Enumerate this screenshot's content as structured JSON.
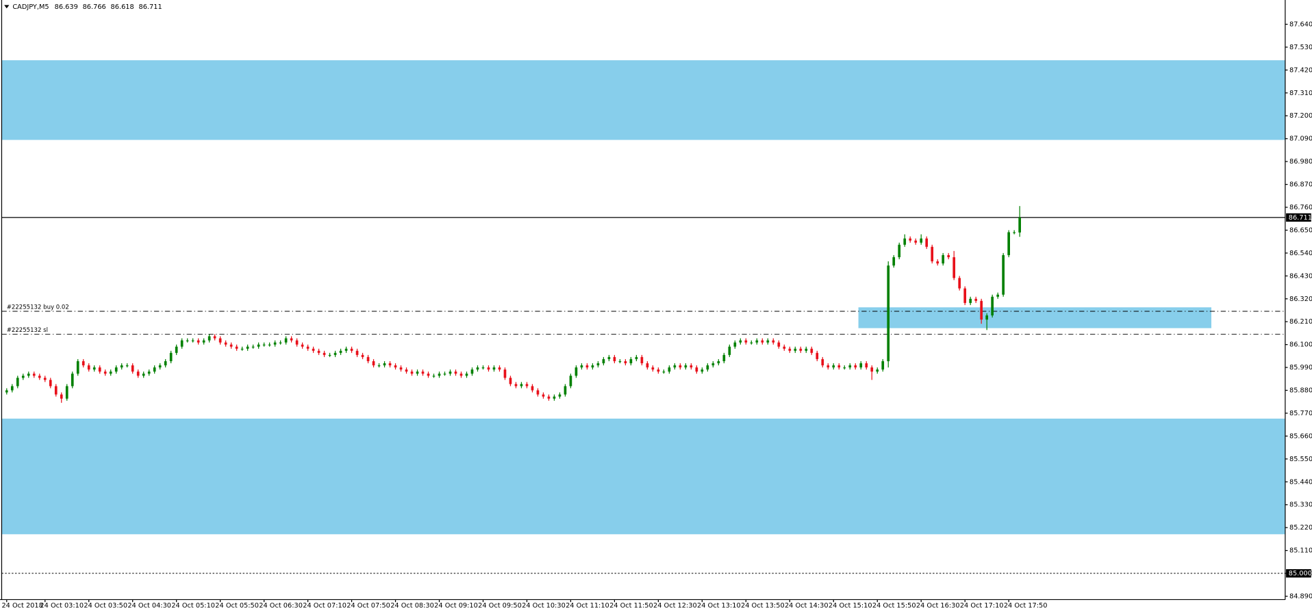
{
  "chart_data": {
    "type": "candlestick",
    "title": "CADJPY,M5",
    "current_price": 86.711,
    "alert_level": {
      "value": 85.0,
      "label": "85.000"
    },
    "up_color": "#008000",
    "down_color": "#e8101a",
    "zone_color": "#87ceeb",
    "ylim": [
      84.8737,
      87.7567
    ],
    "yticks": [
      {
        "value": 87.64,
        "label": "87.640"
      },
      {
        "value": 87.53,
        "label": "87.530"
      },
      {
        "value": 87.42,
        "label": "87.420"
      },
      {
        "value": 87.31,
        "label": "87.310"
      },
      {
        "value": 87.2,
        "label": "87.200"
      },
      {
        "value": 87.09,
        "label": "87.090"
      },
      {
        "value": 86.98,
        "label": "86.980"
      },
      {
        "value": 86.87,
        "label": "86.870"
      },
      {
        "value": 86.76,
        "label": "86.760"
      },
      {
        "value": 86.65,
        "label": "86.650"
      },
      {
        "value": 86.54,
        "label": "86.540"
      },
      {
        "value": 86.43,
        "label": "86.430"
      },
      {
        "value": 86.32,
        "label": "86.320"
      },
      {
        "value": 86.21,
        "label": "86.210"
      },
      {
        "value": 86.1,
        "label": "86.100"
      },
      {
        "value": 85.99,
        "label": "85.990"
      },
      {
        "value": 85.88,
        "label": "85.880"
      },
      {
        "value": 85.77,
        "label": "85.770"
      },
      {
        "value": 85.66,
        "label": "85.660"
      },
      {
        "value": 85.55,
        "label": "85.550"
      },
      {
        "value": 85.44,
        "label": "85.440"
      },
      {
        "value": 85.33,
        "label": "85.330"
      },
      {
        "value": 85.22,
        "label": "85.220"
      },
      {
        "value": 85.11,
        "label": "85.110"
      },
      {
        "value": 85.0,
        "label": "85.000"
      },
      {
        "value": 84.89,
        "label": "84.890"
      }
    ],
    "xticks": [
      {
        "value": 0,
        "label": "24 Oct 2018"
      },
      {
        "value": 7,
        "label": "24 Oct 03:10"
      },
      {
        "value": 15,
        "label": "24 Oct 03:50"
      },
      {
        "value": 23,
        "label": "24 Oct 04:30"
      },
      {
        "value": 31,
        "label": "24 Oct 05:10"
      },
      {
        "value": 39,
        "label": "24 Oct 05:50"
      },
      {
        "value": 47,
        "label": "24 Oct 06:30"
      },
      {
        "value": 55,
        "label": "24 Oct 07:10"
      },
      {
        "value": 63,
        "label": "24 Oct 07:50"
      },
      {
        "value": 71,
        "label": "24 Oct 08:30"
      },
      {
        "value": 79,
        "label": "24 Oct 09:10"
      },
      {
        "value": 87,
        "label": "24 Oct 09:50"
      },
      {
        "value": 95,
        "label": "24 Oct 10:30"
      },
      {
        "value": 103,
        "label": "24 Oct 11:10"
      },
      {
        "value": 111,
        "label": "24 Oct 11:50"
      },
      {
        "value": 119,
        "label": "24 Oct 12:30"
      },
      {
        "value": 127,
        "label": "24 Oct 13:10"
      },
      {
        "value": 135,
        "label": "24 Oct 13:50"
      },
      {
        "value": 143,
        "label": "24 Oct 14:30"
      },
      {
        "value": 151,
        "label": "24 Oct 15:10"
      },
      {
        "value": 159,
        "label": "24 Oct 15:50"
      },
      {
        "value": 167,
        "label": "24 Oct 16:30"
      },
      {
        "value": 175,
        "label": "24 Oct 17:10"
      },
      {
        "value": 183,
        "label": "24 Oct 17:50"
      }
    ],
    "zones": [
      {
        "low": 87.084,
        "high": 87.467
      },
      {
        "low": 85.188,
        "high": 85.744
      },
      {
        "low": 86.179,
        "high": 86.279,
        "start": 156,
        "end": 220
      }
    ],
    "levels": [
      {
        "label": "#22255132 buy 0.02",
        "value": 86.26
      },
      {
        "label": "#22255132 sl",
        "value": 86.15
      }
    ],
    "open": [
      85.87,
      85.88,
      85.9,
      85.94,
      85.95,
      85.96,
      85.95,
      85.94,
      85.93,
      85.9,
      85.86,
      85.84,
      85.9,
      85.96,
      86.02,
      86.0,
      85.98,
      85.99,
      85.97,
      85.96,
      85.97,
      85.99,
      86.0,
      86.0,
      85.97,
      85.95,
      85.96,
      85.97,
      85.99,
      86.0,
      86.02,
      86.06,
      86.09,
      86.12,
      86.12,
      86.12,
      86.11,
      86.12,
      86.14,
      86.13,
      86.11,
      86.1,
      86.09,
      86.08,
      86.08,
      86.09,
      86.09,
      86.1,
      86.1,
      86.1,
      86.11,
      86.11,
      86.13,
      86.12,
      86.1,
      86.09,
      86.08,
      86.07,
      86.06,
      86.05,
      86.05,
      86.06,
      86.07,
      86.08,
      86.07,
      86.05,
      86.04,
      86.02,
      86.0,
      86.0,
      86.01,
      86.0,
      85.99,
      85.98,
      85.97,
      85.96,
      85.97,
      85.96,
      85.95,
      85.95,
      85.96,
      85.96,
      85.97,
      85.96,
      85.95,
      85.96,
      85.98,
      85.99,
      85.99,
      85.98,
      85.99,
      85.98,
      85.94,
      85.91,
      85.9,
      85.91,
      85.9,
      85.88,
      85.86,
      85.85,
      85.84,
      85.85,
      85.86,
      85.9,
      85.95,
      85.99,
      86.0,
      85.99,
      86.0,
      86.01,
      86.03,
      86.04,
      86.02,
      86.02,
      86.01,
      86.03,
      86.04,
      86.01,
      85.99,
      85.98,
      85.97,
      85.97,
      85.99,
      86.0,
      85.99,
      86.0,
      85.99,
      85.97,
      85.98,
      86.0,
      86.01,
      86.02,
      86.05,
      86.09,
      86.11,
      86.12,
      86.11,
      86.11,
      86.12,
      86.11,
      86.12,
      86.11,
      86.09,
      86.08,
      86.07,
      86.08,
      86.07,
      86.08,
      86.06,
      86.03,
      86.0,
      85.99,
      86.0,
      85.99,
      85.99,
      86.0,
      85.99,
      86.01,
      85.99,
      85.97,
      85.98,
      86.02,
      86.48,
      86.52,
      86.58,
      86.61,
      86.6,
      86.59,
      86.61,
      86.57,
      86.5,
      86.49,
      86.53,
      86.52,
      86.42,
      86.37,
      86.3,
      86.32,
      86.31,
      86.22,
      86.24,
      86.33,
      86.34,
      86.53,
      86.64,
      86.639
    ],
    "high": [
      85.89,
      85.91,
      85.95,
      85.96,
      85.97,
      85.97,
      85.96,
      85.95,
      85.94,
      85.91,
      85.87,
      85.91,
      85.97,
      86.03,
      86.03,
      86.01,
      86.0,
      86.0,
      85.98,
      85.98,
      86.0,
      86.01,
      86.01,
      86.01,
      85.98,
      85.97,
      85.98,
      86.0,
      86.01,
      86.03,
      86.07,
      86.1,
      86.13,
      86.13,
      86.13,
      86.13,
      86.13,
      86.15,
      86.15,
      86.14,
      86.12,
      86.11,
      86.1,
      86.09,
      86.1,
      86.1,
      86.11,
      86.11,
      86.11,
      86.12,
      86.12,
      86.14,
      86.14,
      86.13,
      86.11,
      86.1,
      86.09,
      86.08,
      86.07,
      86.06,
      86.07,
      86.08,
      86.09,
      86.09,
      86.08,
      86.06,
      86.05,
      86.03,
      86.01,
      86.02,
      86.02,
      86.01,
      86.0,
      85.99,
      85.98,
      85.98,
      85.98,
      85.97,
      85.96,
      85.97,
      85.97,
      85.98,
      85.98,
      85.97,
      85.97,
      85.99,
      86.0,
      86.0,
      86.0,
      86.0,
      86.0,
      85.99,
      85.95,
      85.92,
      85.92,
      85.92,
      85.91,
      85.89,
      85.87,
      85.86,
      85.86,
      85.87,
      85.91,
      85.96,
      86.0,
      86.01,
      86.01,
      86.01,
      86.02,
      86.04,
      86.05,
      86.05,
      86.03,
      86.03,
      86.04,
      86.05,
      86.05,
      86.02,
      86.0,
      85.99,
      85.98,
      86.0,
      86.01,
      86.01,
      86.01,
      86.01,
      86.0,
      85.99,
      86.01,
      86.02,
      86.03,
      86.06,
      86.1,
      86.12,
      86.13,
      86.13,
      86.12,
      86.13,
      86.13,
      86.13,
      86.13,
      86.12,
      86.1,
      86.09,
      86.09,
      86.09,
      86.09,
      86.09,
      86.07,
      86.04,
      86.01,
      86.01,
      86.01,
      86.0,
      86.01,
      86.01,
      86.02,
      86.02,
      86.0,
      85.99,
      86.03,
      86.5,
      86.53,
      86.59,
      86.63,
      86.62,
      86.61,
      86.63,
      86.62,
      86.58,
      86.51,
      86.54,
      86.54,
      86.55,
      86.43,
      86.38,
      86.33,
      86.33,
      86.32,
      86.25,
      86.34,
      86.35,
      86.54,
      86.65,
      86.65,
      86.766
    ],
    "low": [
      85.86,
      85.87,
      85.89,
      85.93,
      85.94,
      85.94,
      85.93,
      85.92,
      85.89,
      85.85,
      85.82,
      85.83,
      85.89,
      85.95,
      85.99,
      85.97,
      85.97,
      85.96,
      85.95,
      85.95,
      85.96,
      85.98,
      85.99,
      85.96,
      85.94,
      85.94,
      85.95,
      85.96,
      85.98,
      85.99,
      86.01,
      86.05,
      86.08,
      86.11,
      86.11,
      86.1,
      86.1,
      86.11,
      86.12,
      86.1,
      86.09,
      86.08,
      86.07,
      86.07,
      86.07,
      86.08,
      86.08,
      86.09,
      86.09,
      86.09,
      86.1,
      86.1,
      86.11,
      86.09,
      86.08,
      86.07,
      86.06,
      86.05,
      86.04,
      86.04,
      86.04,
      86.05,
      86.06,
      86.06,
      86.04,
      86.03,
      86.01,
      85.99,
      85.99,
      85.99,
      85.99,
      85.98,
      85.97,
      85.96,
      85.95,
      85.95,
      85.95,
      85.94,
      85.94,
      85.94,
      85.95,
      85.95,
      85.95,
      85.94,
      85.94,
      85.95,
      85.97,
      85.98,
      85.97,
      85.97,
      85.97,
      85.93,
      85.9,
      85.89,
      85.89,
      85.89,
      85.87,
      85.85,
      85.84,
      85.83,
      85.83,
      85.84,
      85.85,
      85.89,
      85.94,
      85.98,
      85.98,
      85.98,
      85.99,
      86.0,
      86.02,
      86.01,
      86.01,
      86.0,
      86.0,
      86.02,
      86.0,
      85.98,
      85.97,
      85.96,
      85.96,
      85.96,
      85.98,
      85.98,
      85.98,
      85.98,
      85.96,
      85.96,
      85.97,
      85.99,
      86.0,
      86.01,
      86.04,
      86.08,
      86.1,
      86.1,
      86.1,
      86.1,
      86.1,
      86.1,
      86.1,
      86.08,
      86.07,
      86.06,
      86.06,
      86.06,
      86.06,
      86.05,
      86.02,
      85.99,
      85.98,
      85.98,
      85.98,
      85.98,
      85.98,
      85.98,
      85.98,
      85.98,
      85.93,
      85.96,
      85.97,
      85.99,
      86.47,
      86.51,
      86.57,
      86.59,
      86.58,
      86.58,
      86.56,
      86.49,
      86.48,
      86.48,
      86.51,
      86.41,
      86.36,
      86.29,
      86.29,
      86.3,
      86.2,
      86.17,
      86.23,
      86.32,
      86.33,
      86.52,
      86.63,
      86.618
    ],
    "close": [
      85.88,
      85.9,
      85.94,
      85.95,
      85.96,
      85.95,
      85.94,
      85.93,
      85.9,
      85.86,
      85.84,
      85.9,
      85.96,
      86.02,
      86.0,
      85.98,
      85.99,
      85.97,
      85.96,
      85.97,
      85.99,
      86.0,
      86.0,
      85.97,
      85.95,
      85.96,
      85.97,
      85.99,
      86.0,
      86.02,
      86.06,
      86.09,
      86.12,
      86.12,
      86.12,
      86.11,
      86.12,
      86.14,
      86.13,
      86.11,
      86.1,
      86.09,
      86.08,
      86.08,
      86.09,
      86.09,
      86.1,
      86.1,
      86.1,
      86.11,
      86.11,
      86.13,
      86.12,
      86.1,
      86.09,
      86.08,
      86.07,
      86.06,
      86.05,
      86.05,
      86.06,
      86.07,
      86.08,
      86.07,
      86.05,
      86.04,
      86.02,
      86.0,
      86.0,
      86.01,
      86.0,
      85.99,
      85.98,
      85.97,
      85.96,
      85.97,
      85.96,
      85.95,
      85.95,
      85.96,
      85.96,
      85.97,
      85.96,
      85.95,
      85.96,
      85.98,
      85.99,
      85.99,
      85.98,
      85.99,
      85.98,
      85.94,
      85.91,
      85.9,
      85.91,
      85.9,
      85.88,
      85.86,
      85.85,
      85.84,
      85.85,
      85.86,
      85.9,
      85.95,
      85.99,
      86.0,
      85.99,
      86.0,
      86.01,
      86.03,
      86.04,
      86.02,
      86.02,
      86.01,
      86.03,
      86.04,
      86.01,
      85.99,
      85.98,
      85.97,
      85.97,
      85.99,
      86.0,
      85.99,
      86.0,
      85.99,
      85.97,
      85.98,
      86.0,
      86.01,
      86.02,
      86.05,
      86.09,
      86.11,
      86.12,
      86.11,
      86.11,
      86.12,
      86.11,
      86.12,
      86.11,
      86.09,
      86.08,
      86.07,
      86.08,
      86.07,
      86.08,
      86.06,
      86.03,
      86.0,
      85.99,
      86.0,
      85.99,
      85.99,
      86.0,
      85.99,
      86.01,
      85.99,
      85.97,
      85.98,
      86.02,
      86.48,
      86.52,
      86.58,
      86.61,
      86.6,
      86.59,
      86.61,
      86.57,
      86.5,
      86.49,
      86.53,
      86.52,
      86.42,
      86.37,
      86.3,
      86.32,
      86.31,
      86.22,
      86.24,
      86.33,
      86.34,
      86.53,
      86.64,
      86.64,
      86.711
    ]
  }
}
